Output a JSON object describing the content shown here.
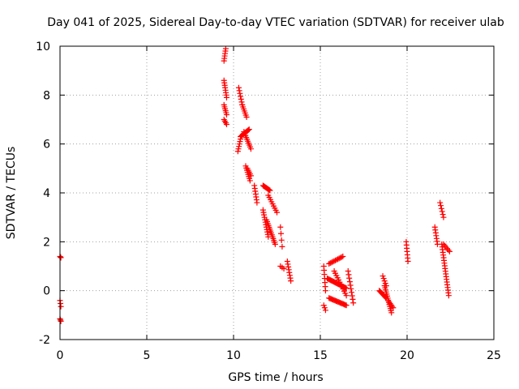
{
  "chart_data": {
    "type": "scatter",
    "title": "Day 041 of 2025, Sidereal Day-to-day VTEC variation (SDTVAR) for receiver ulab",
    "xlabel": "GPS time / hours",
    "ylabel": "SDTVAR / TECUs",
    "xlim": [
      0,
      25
    ],
    "ylim": [
      -2,
      10
    ],
    "xticks": [
      0,
      5,
      10,
      15,
      20,
      25
    ],
    "yticks": [
      -2,
      0,
      2,
      4,
      6,
      8,
      10
    ],
    "grid": true,
    "marker": "plus",
    "color": "#ff0000",
    "series": [
      {
        "name": "SDTVAR",
        "segments": [
          {
            "x0": 0.0,
            "x1": 0.05,
            "y0": 1.4,
            "y1": 1.35,
            "n": 3
          },
          {
            "x0": 0.0,
            "x1": 0.05,
            "y0": -0.4,
            "y1": -0.65,
            "n": 3
          },
          {
            "x0": 0.0,
            "x1": 0.05,
            "y0": -1.15,
            "y1": -1.25,
            "n": 3
          },
          {
            "x0": 9.45,
            "x1": 9.55,
            "y0": 9.4,
            "y1": 9.9,
            "n": 6
          },
          {
            "x0": 9.45,
            "x1": 9.6,
            "y0": 8.6,
            "y1": 7.9,
            "n": 8
          },
          {
            "x0": 9.45,
            "x1": 9.6,
            "y0": 7.6,
            "y1": 7.2,
            "n": 6
          },
          {
            "x0": 9.45,
            "x1": 9.6,
            "y0": 7.0,
            "y1": 6.8,
            "n": 4
          },
          {
            "x0": 10.3,
            "x1": 10.5,
            "y0": 8.3,
            "y1": 7.6,
            "n": 7
          },
          {
            "x0": 10.5,
            "x1": 10.75,
            "y0": 7.6,
            "y1": 7.1,
            "n": 7
          },
          {
            "x0": 10.25,
            "x1": 10.4,
            "y0": 5.7,
            "y1": 6.2,
            "n": 6
          },
          {
            "x0": 10.4,
            "x1": 10.9,
            "y0": 6.3,
            "y1": 6.6,
            "n": 12
          },
          {
            "x0": 10.6,
            "x1": 11.0,
            "y0": 6.5,
            "y1": 5.8,
            "n": 10
          },
          {
            "x0": 10.7,
            "x1": 10.95,
            "y0": 5.1,
            "y1": 4.5,
            "n": 8
          },
          {
            "x0": 10.8,
            "x1": 11.0,
            "y0": 5.0,
            "y1": 4.7,
            "n": 5
          },
          {
            "x0": 11.2,
            "x1": 11.35,
            "y0": 4.3,
            "y1": 3.6,
            "n": 7
          },
          {
            "x0": 11.7,
            "x1": 12.1,
            "y0": 4.3,
            "y1": 4.1,
            "n": 10
          },
          {
            "x0": 11.7,
            "x1": 12.0,
            "y0": 3.3,
            "y1": 2.2,
            "n": 12
          },
          {
            "x0": 11.9,
            "x1": 12.4,
            "y0": 2.9,
            "y1": 1.9,
            "n": 14
          },
          {
            "x0": 12.0,
            "x1": 12.5,
            "y0": 3.9,
            "y1": 3.2,
            "n": 9
          },
          {
            "x0": 12.7,
            "x1": 12.8,
            "y0": 2.6,
            "y1": 1.8,
            "n": 4
          },
          {
            "x0": 12.7,
            "x1": 12.9,
            "y0": 1.0,
            "y1": 0.9,
            "n": 3
          },
          {
            "x0": 13.1,
            "x1": 13.3,
            "y0": 1.2,
            "y1": 0.4,
            "n": 8
          },
          {
            "x0": 15.2,
            "x1": 15.3,
            "y0": 1.0,
            "y1": 0.0,
            "n": 7
          },
          {
            "x0": 15.2,
            "x1": 15.3,
            "y0": -0.6,
            "y1": -0.8,
            "n": 3
          },
          {
            "x0": 15.4,
            "x1": 16.5,
            "y0": 0.5,
            "y1": 0.1,
            "n": 22
          },
          {
            "x0": 15.5,
            "x1": 16.3,
            "y0": 1.1,
            "y1": 1.4,
            "n": 12
          },
          {
            "x0": 15.5,
            "x1": 16.5,
            "y0": -0.3,
            "y1": -0.6,
            "n": 18
          },
          {
            "x0": 15.8,
            "x1": 16.5,
            "y0": 0.8,
            "y1": -0.2,
            "n": 12
          },
          {
            "x0": 16.6,
            "x1": 16.9,
            "y0": 0.8,
            "y1": -0.5,
            "n": 10
          },
          {
            "x0": 18.4,
            "x1": 18.8,
            "y0": 0.0,
            "y1": -0.3,
            "n": 10
          },
          {
            "x0": 18.6,
            "x1": 18.8,
            "y0": 0.6,
            "y1": 0.2,
            "n": 5
          },
          {
            "x0": 18.7,
            "x1": 19.1,
            "y0": 0.2,
            "y1": -0.9,
            "n": 14
          },
          {
            "x0": 18.9,
            "x1": 19.2,
            "y0": -0.4,
            "y1": -0.7,
            "n": 6
          },
          {
            "x0": 19.95,
            "x1": 20.05,
            "y0": 2.0,
            "y1": 1.2,
            "n": 7
          },
          {
            "x0": 21.6,
            "x1": 21.75,
            "y0": 2.6,
            "y1": 1.9,
            "n": 7
          },
          {
            "x0": 21.9,
            "x1": 22.1,
            "y0": 3.6,
            "y1": 3.0,
            "n": 6
          },
          {
            "x0": 22.0,
            "x1": 22.4,
            "y0": 1.9,
            "y1": -0.2,
            "n": 20
          },
          {
            "x0": 22.1,
            "x1": 22.45,
            "y0": 1.9,
            "y1": 1.6,
            "n": 6
          }
        ]
      }
    ]
  }
}
